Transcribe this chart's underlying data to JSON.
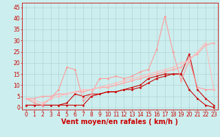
{
  "x": [
    0,
    1,
    2,
    3,
    4,
    5,
    6,
    7,
    8,
    9,
    10,
    11,
    12,
    13,
    14,
    15,
    16,
    17,
    18,
    19,
    20,
    21,
    22,
    23
  ],
  "series": [
    {
      "name": "line1_dark",
      "color": "#cc0000",
      "linewidth": 0.8,
      "marker": "D",
      "markersize": 1.5,
      "y": [
        1,
        1,
        1,
        1,
        1,
        1,
        1,
        1,
        5,
        6,
        7,
        7,
        8,
        8,
        9,
        11,
        13,
        14,
        15,
        15,
        24,
        8,
        4,
        1
      ]
    },
    {
      "name": "line2_dark",
      "color": "#cc0000",
      "linewidth": 0.8,
      "marker": "D",
      "markersize": 1.5,
      "y": [
        1,
        1,
        1,
        1,
        1,
        2,
        6,
        5,
        6,
        6,
        7,
        7,
        8,
        9,
        10,
        13,
        14,
        15,
        15,
        15,
        8,
        4,
        1,
        0
      ]
    },
    {
      "name": "line3_light",
      "color": "#ff9999",
      "linewidth": 0.8,
      "marker": "D",
      "markersize": 1.5,
      "y": [
        4,
        2,
        1,
        4,
        8,
        18,
        17,
        3,
        6,
        13,
        13,
        14,
        13,
        14,
        16,
        17,
        26,
        41,
        25,
        12,
        21,
        9,
        8,
        8
      ]
    },
    {
      "name": "line4_light_linear",
      "color": "#ffaaaa",
      "linewidth": 1.0,
      "marker": "D",
      "markersize": 1.5,
      "y": [
        4,
        4,
        5,
        5,
        6,
        6,
        7,
        7,
        8,
        9,
        9,
        10,
        11,
        12,
        13,
        14,
        15,
        16,
        17,
        18,
        22,
        24,
        28,
        29
      ]
    },
    {
      "name": "line5_light_trend",
      "color": "#ffbbbb",
      "linewidth": 0.8,
      "marker": "D",
      "markersize": 1.5,
      "y": [
        4,
        3,
        2,
        4,
        5,
        6,
        7,
        8,
        8,
        9,
        10,
        11,
        12,
        13,
        14,
        15,
        16,
        17,
        18,
        20,
        21,
        25,
        29,
        8
      ]
    }
  ],
  "xlabel": "Vent moyen/en rafales ( km/h )",
  "xlabel_color": "#cc0000",
  "xlabel_fontsize": 7,
  "xticks": [
    0,
    1,
    2,
    3,
    4,
    5,
    6,
    7,
    8,
    9,
    10,
    11,
    12,
    13,
    14,
    15,
    16,
    17,
    18,
    19,
    20,
    21,
    22,
    23
  ],
  "yticks": [
    0,
    5,
    10,
    15,
    20,
    25,
    30,
    35,
    40,
    45
  ],
  "ylim": [
    -1,
    47
  ],
  "xlim": [
    -0.5,
    23.5
  ],
  "grid_color": "#aacccc",
  "bg_color": "#cceeee",
  "tick_color": "#cc0000",
  "tick_fontsize": 5.5,
  "fig_width": 3.2,
  "fig_height": 2.0,
  "dpi": 100
}
